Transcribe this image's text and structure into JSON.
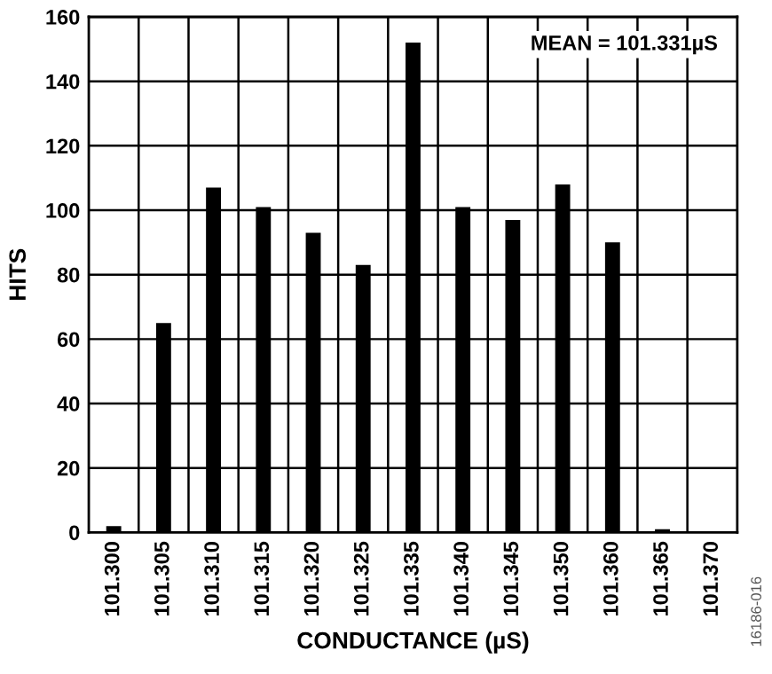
{
  "chart_data": {
    "type": "bar",
    "xlabel": "CONDUCTANCE (µS)",
    "ylabel": "HITS",
    "categories": [
      "101.300",
      "101.305",
      "101.310",
      "101.315",
      "101.320",
      "101.325",
      "101.335",
      "101.340",
      "101.345",
      "101.350",
      "101.360",
      "101.365",
      "101.370"
    ],
    "values": [
      2,
      65,
      107,
      101,
      93,
      83,
      152,
      101,
      97,
      108,
      90,
      1,
      0
    ],
    "color": "#000000",
    "ylim": [
      0,
      160
    ],
    "yticks": [
      0,
      20,
      40,
      60,
      80,
      100,
      120,
      140,
      160
    ],
    "grid": true,
    "legend": false,
    "annotations": [
      "MEAN = 101.331µS",
      "16186-016"
    ]
  }
}
